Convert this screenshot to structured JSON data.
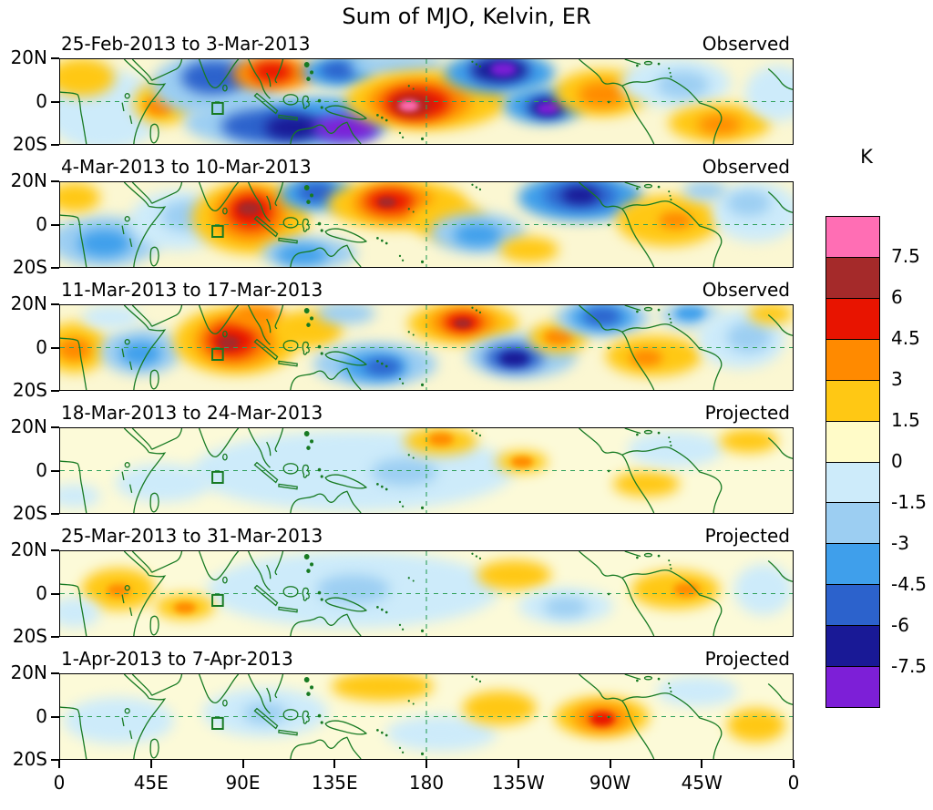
{
  "figure": {
    "title": "Sum of MJO, Kelvin, ER"
  },
  "axes": {
    "x_tick_labels": [
      "0",
      "45E",
      "90E",
      "135E",
      "180",
      "135W",
      "90W",
      "45W",
      "0"
    ],
    "y_tick_labels": [
      "20N",
      "0",
      "20S"
    ]
  },
  "colorbar": {
    "unit": "K",
    "tick_labels": [
      "7.5",
      "6",
      "4.5",
      "3",
      "1.5",
      "0",
      "-1.5",
      "-3",
      "-4.5",
      "-6",
      "-7.5"
    ],
    "box_colors_top_to_bottom": [
      "#FF6EB4",
      "#A52A2A",
      "#E81400",
      "#FF8A00",
      "#FFC814",
      "#FFFBC8",
      "#CDEBFA",
      "#9CCEF2",
      "#3F9FEB",
      "#2C62CC",
      "#191996",
      "#7D1FD7"
    ]
  },
  "colors": {
    "coastline": "#177A22",
    "dashed_gridline": "#2FA05A",
    "panel_border": "#000000",
    "background": "#FFFFFF"
  },
  "chart_data": {
    "type": "heatmap",
    "title": "Sum of MJO, Kelvin, ER",
    "unit": "K",
    "contour_levels": [
      -7.5,
      -6,
      -4.5,
      -3,
      -1.5,
      0,
      1.5,
      3,
      4.5,
      6,
      7.5
    ],
    "lon_ticks_deg": [
      0,
      45,
      90,
      135,
      180,
      225,
      270,
      315,
      360
    ],
    "lat_ticks_deg": [
      20,
      0,
      -20
    ],
    "legend_position": "right",
    "palette": {
      "p6": "#FF6EB4",
      "p5": "#A52A2A",
      "p4": "#E81400",
      "p3": "#FF8A00",
      "p2": "#FFC814",
      "p1": "#FFFBC8",
      "m1": "#CDEBFA",
      "m2": "#9CCEF2",
      "m3": "#3F9FEB",
      "m4": "#2C62CC",
      "m5": "#191996",
      "m6": "#7D1FD7"
    },
    "panels": [
      {
        "date_range": "25-Feb-2013 to 3-Mar-2013",
        "status": "Observed",
        "base_color": "#FBF7D2",
        "blobs": [
          [
            6,
            60,
            16,
            95,
            "m1"
          ],
          [
            3,
            22,
            9,
            45,
            "p2"
          ],
          [
            14,
            52,
            8,
            50,
            "p2"
          ],
          [
            13.5,
            55,
            4,
            24,
            "p3"
          ],
          [
            21,
            30,
            17,
            75,
            "m2"
          ],
          [
            21,
            21,
            9,
            40,
            "m4"
          ],
          [
            29,
            17,
            11,
            42,
            "p3"
          ],
          [
            29,
            15,
            5.5,
            24,
            "p4"
          ],
          [
            31,
            75,
            28,
            60,
            "m2"
          ],
          [
            36,
            72,
            17,
            48,
            "m3"
          ],
          [
            28,
            79,
            12,
            38,
            "m4"
          ],
          [
            32,
            81,
            8,
            30,
            "m5"
          ],
          [
            39,
            82,
            9,
            32,
            "m6"
          ],
          [
            38,
            15,
            10,
            36,
            "m3"
          ],
          [
            38,
            13,
            5,
            20,
            "m4"
          ],
          [
            46,
            7,
            13,
            28,
            "m2"
          ],
          [
            50,
            48,
            22,
            70,
            "p2"
          ],
          [
            49,
            50,
            14,
            50,
            "p3"
          ],
          [
            48.7,
            52,
            9,
            36,
            "p4"
          ],
          [
            48,
            54,
            5,
            22,
            "p5"
          ],
          [
            47.6,
            55,
            2.8,
            13,
            "p6"
          ],
          [
            60,
            16,
            15,
            48,
            "m3"
          ],
          [
            60,
            13,
            8,
            30,
            "m5"
          ],
          [
            60.5,
            12,
            3.5,
            16,
            "m6"
          ],
          [
            66,
            55,
            11,
            42,
            "m3"
          ],
          [
            66.5,
            57,
            5.5,
            24,
            "m5"
          ],
          [
            66.5,
            58,
            3,
            14,
            "m6"
          ],
          [
            74,
            40,
            13,
            55,
            "p2"
          ],
          [
            74,
            42,
            6.5,
            30,
            "p3"
          ],
          [
            84,
            28,
            15,
            58,
            "m1"
          ],
          [
            85,
            30,
            7,
            32,
            "m2"
          ],
          [
            90,
            75,
            14,
            45,
            "p2"
          ],
          [
            90,
            77,
            6,
            24,
            "p3"
          ],
          [
            98,
            40,
            9,
            65,
            "m1"
          ]
        ]
      },
      {
        "date_range": "4-Mar-2013 to 10-Mar-2013",
        "status": "Observed",
        "base_color": "#FBF7D2",
        "blobs": [
          [
            6,
            70,
            15,
            60,
            "m2"
          ],
          [
            6,
            72,
            7,
            32,
            "m3"
          ],
          [
            2,
            18,
            7,
            35,
            "p2"
          ],
          [
            16,
            45,
            13,
            70,
            "m1"
          ],
          [
            17,
            40,
            6.5,
            35,
            "m2"
          ],
          [
            26,
            42,
            16,
            85,
            "p2"
          ],
          [
            26,
            38,
            10,
            62,
            "p3"
          ],
          [
            26,
            34,
            6,
            40,
            "p4"
          ],
          [
            25.8,
            31,
            3,
            16,
            "p5"
          ],
          [
            35,
            14,
            10,
            40,
            "m3"
          ],
          [
            35,
            12,
            5,
            22,
            "m4"
          ],
          [
            34,
            84,
            13,
            38,
            "m2"
          ],
          [
            33,
            86,
            7,
            25,
            "m3"
          ],
          [
            46,
            26,
            19,
            58,
            "p2"
          ],
          [
            45.5,
            25,
            11,
            42,
            "p3"
          ],
          [
            45,
            23,
            6.5,
            27,
            "p4"
          ],
          [
            44.6,
            24,
            2.6,
            12,
            "p5"
          ],
          [
            53,
            45,
            10,
            45,
            "p2"
          ],
          [
            57,
            60,
            13,
            48,
            "m2"
          ],
          [
            57,
            62,
            6.5,
            27,
            "m3"
          ],
          [
            71,
            18,
            17,
            55,
            "m3"
          ],
          [
            71,
            16,
            10,
            34,
            "m4"
          ],
          [
            71,
            15,
            5,
            20,
            "m5"
          ],
          [
            64,
            80,
            8,
            30,
            "p2"
          ],
          [
            83,
            45,
            14,
            60,
            "p2"
          ],
          [
            84,
            45,
            4.5,
            20,
            "p3"
          ],
          [
            95,
            35,
            12,
            70,
            "m1"
          ],
          [
            94,
            25,
            6,
            30,
            "m2"
          ],
          [
            88,
            10,
            6,
            22,
            "m2"
          ]
        ]
      },
      {
        "date_range": "11-Mar-2013 to 17-Mar-2013",
        "status": "Observed",
        "base_color": "#FBF7D2",
        "blobs": [
          [
            2,
            50,
            9,
            60,
            "p2"
          ],
          [
            2,
            52,
            4.5,
            26,
            "p3"
          ],
          [
            11,
            55,
            11,
            55,
            "m2"
          ],
          [
            11,
            57,
            5.5,
            28,
            "m3"
          ],
          [
            7,
            14,
            8,
            28,
            "m1"
          ],
          [
            24,
            42,
            17,
            80,
            "p2"
          ],
          [
            24,
            42,
            11,
            58,
            "p3"
          ],
          [
            23.5,
            42,
            6.5,
            38,
            "p4"
          ],
          [
            23,
            44,
            3,
            16,
            "p5"
          ],
          [
            27,
            12,
            7,
            26,
            "p3"
          ],
          [
            34,
            28,
            9,
            45,
            "p2"
          ],
          [
            43,
            70,
            17,
            52,
            "m2"
          ],
          [
            43,
            72,
            9,
            34,
            "m3"
          ],
          [
            44,
            73,
            5,
            20,
            "m4"
          ],
          [
            39,
            10,
            8,
            26,
            "m2"
          ],
          [
            55,
            22,
            15,
            48,
            "p2"
          ],
          [
            55,
            20,
            9,
            34,
            "p3"
          ],
          [
            55,
            20,
            5,
            22,
            "p4"
          ],
          [
            55,
            21,
            2.4,
            11,
            "p5"
          ],
          [
            63,
            60,
            15,
            52,
            "m2"
          ],
          [
            62,
            62,
            8,
            33,
            "m4"
          ],
          [
            62,
            63,
            4,
            18,
            "m5"
          ],
          [
            68,
            38,
            8,
            36,
            "p2"
          ],
          [
            68,
            38,
            4,
            18,
            "p3"
          ],
          [
            74,
            15,
            13,
            42,
            "m2"
          ],
          [
            74,
            14,
            9,
            32,
            "m3"
          ],
          [
            74,
            13,
            5,
            20,
            "m4"
          ],
          [
            86,
            12,
            8,
            30,
            "m2"
          ],
          [
            86,
            10,
            4,
            16,
            "m3"
          ],
          [
            81,
            60,
            13,
            48,
            "p2"
          ],
          [
            80,
            62,
            4.5,
            20,
            "p3"
          ],
          [
            93,
            40,
            12,
            70,
            "m1"
          ],
          [
            94,
            38,
            6,
            35,
            "m2"
          ],
          [
            97,
            10,
            6,
            24,
            "p2"
          ]
        ]
      },
      {
        "date_range": "18-Mar-2013 to 24-Mar-2013",
        "status": "Projected",
        "base_color": "#FCFAD8",
        "blobs": [
          [
            40,
            50,
            44,
            95,
            "m1"
          ],
          [
            14,
            65,
            13,
            45,
            "m1"
          ],
          [
            47,
            52,
            9,
            32,
            "m2"
          ],
          [
            52,
            15,
            10,
            32,
            "p2"
          ],
          [
            52,
            13,
            3.5,
            15,
            "p3"
          ],
          [
            63,
            40,
            7,
            26,
            "p2"
          ],
          [
            63,
            40,
            3,
            13,
            "p3"
          ],
          [
            80,
            66,
            9,
            30,
            "p2"
          ],
          [
            84,
            25,
            13,
            42,
            "m1"
          ],
          [
            94,
            15,
            8,
            28,
            "p2"
          ],
          [
            2,
            80,
            7,
            26,
            "m1"
          ]
        ]
      },
      {
        "date_range": "25-Mar-2013 to 31-Mar-2013",
        "status": "Projected",
        "base_color": "#FCFAD8",
        "blobs": [
          [
            40,
            45,
            40,
            90,
            "m1"
          ],
          [
            40,
            45,
            10,
            35,
            "m2"
          ],
          [
            8,
            45,
            10,
            50,
            "p2"
          ],
          [
            8,
            46,
            3.2,
            15,
            "p3"
          ],
          [
            17,
            66,
            8,
            30,
            "p2"
          ],
          [
            17,
            67,
            3,
            13,
            "p3"
          ],
          [
            2,
            72,
            7,
            35,
            "m1"
          ],
          [
            62,
            28,
            10,
            35,
            "p2"
          ],
          [
            69,
            65,
            13,
            42,
            "m1"
          ],
          [
            69,
            66,
            6,
            23,
            "m2"
          ],
          [
            84,
            45,
            12,
            45,
            "p2"
          ],
          [
            85.5,
            45,
            3.5,
            16,
            "p3"
          ],
          [
            96,
            45,
            8,
            60,
            "m1"
          ]
        ]
      },
      {
        "date_range": "1-Apr-2013 to 7-Apr-2013",
        "status": "Projected",
        "base_color": "#FCFAD8",
        "blobs": [
          [
            8,
            55,
            15,
            55,
            "m1"
          ],
          [
            28,
            45,
            17,
            58,
            "m1"
          ],
          [
            28,
            46,
            6,
            25,
            "m2"
          ],
          [
            44,
            14,
            14,
            34,
            "p2"
          ],
          [
            52,
            70,
            15,
            42,
            "m1"
          ],
          [
            60,
            40,
            10,
            40,
            "p2"
          ],
          [
            74,
            50,
            13,
            48,
            "p2"
          ],
          [
            74,
            52,
            7.5,
            32,
            "p3"
          ],
          [
            74,
            53,
            3.5,
            17,
            "p4"
          ],
          [
            87,
            20,
            11,
            36,
            "m1"
          ],
          [
            95,
            60,
            8,
            40,
            "p2"
          ]
        ]
      }
    ]
  }
}
